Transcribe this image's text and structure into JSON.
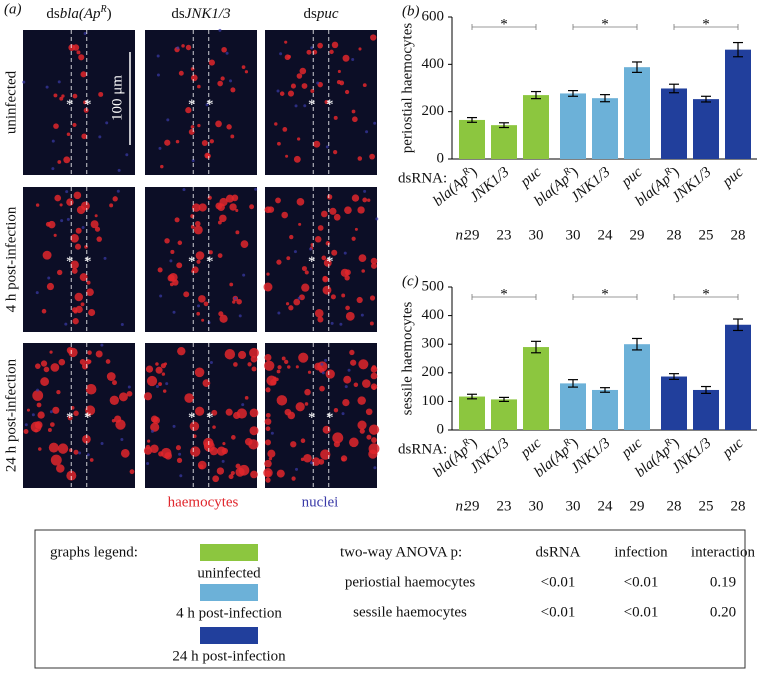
{
  "panel_a": {
    "label": "(a)",
    "columns": [
      {
        "prefix": "ds",
        "gene": "bla(Ap",
        "sup": "R",
        "end": ")"
      },
      {
        "prefix": "ds",
        "gene": "JNK1/3"
      },
      {
        "prefix": "ds",
        "gene": "puc"
      }
    ],
    "rows": [
      "uninfected",
      "4 h post-infection",
      "24 h post-infection"
    ],
    "scale_bar": "100 μm",
    "image_marker": "*",
    "channels": [
      {
        "name": "haemocytes",
        "color": "#e0262c"
      },
      {
        "name": "nuclei",
        "color": "#3a3aa8"
      }
    ]
  },
  "chart_data": [
    {
      "type": "bar",
      "panel_label": "(b)",
      "y_label": "periostial haemocytes",
      "x_row_label": "dsRNA:",
      "n_row_label": "n:",
      "categories": [
        {
          "label": "bla(Ap",
          "sup": "R",
          "end": ")"
        },
        {
          "label": "JNK1/3"
        },
        {
          "label": "puc"
        }
      ],
      "ylim": [
        0,
        600
      ],
      "yticks": [
        0,
        200,
        400,
        600
      ],
      "significance": [
        "*",
        "*",
        "*"
      ],
      "series": [
        {
          "name": "uninfected",
          "color": "#8cc63f",
          "values": [
            165,
            143,
            270
          ],
          "errors": [
            10,
            10,
            15
          ],
          "n": [
            29,
            23,
            30
          ]
        },
        {
          "name": "4 h post-infection",
          "color": "#6cb1d8",
          "values": [
            277,
            257,
            388
          ],
          "errors": [
            12,
            15,
            22
          ],
          "n": [
            30,
            24,
            29
          ]
        },
        {
          "name": "24 h post-infection",
          "color": "#213f9c",
          "values": [
            298,
            253,
            462
          ],
          "errors": [
            18,
            12,
            30
          ],
          "n": [
            28,
            25,
            28
          ]
        }
      ]
    },
    {
      "type": "bar",
      "panel_label": "(c)",
      "y_label": "sessile haemocytes",
      "x_row_label": "dsRNA:",
      "n_row_label": "n:",
      "categories": [
        {
          "label": "bla(Ap",
          "sup": "R",
          "end": ")"
        },
        {
          "label": "JNK1/3"
        },
        {
          "label": "puc"
        }
      ],
      "ylim": [
        0,
        500
      ],
      "yticks": [
        0,
        100,
        200,
        300,
        400,
        500
      ],
      "significance": [
        "*",
        "*",
        "*"
      ],
      "series": [
        {
          "color": "#8cc63f",
          "values": [
            117,
            107,
            290
          ],
          "errors": [
            8,
            7,
            20
          ],
          "n": [
            29,
            23,
            30
          ]
        },
        {
          "color": "#6cb1d8",
          "values": [
            163,
            140,
            300
          ],
          "errors": [
            13,
            8,
            20
          ],
          "n": [
            30,
            24,
            29
          ]
        },
        {
          "color": "#213f9c",
          "values": [
            187,
            140,
            368
          ],
          "errors": [
            10,
            12,
            20
          ],
          "n": [
            28,
            25,
            28
          ]
        }
      ]
    }
  ],
  "legend_box": {
    "title": "graphs legend:",
    "anova": {
      "title": "two-way ANOVA p:",
      "columns": [
        "dsRNA",
        "infection",
        "interaction"
      ],
      "rows": [
        [
          "periostial haemocytes",
          "<0.01",
          "<0.01",
          "0.19"
        ],
        [
          "sessile haemocytes",
          "<0.01",
          "<0.01",
          "0.20"
        ]
      ]
    }
  }
}
